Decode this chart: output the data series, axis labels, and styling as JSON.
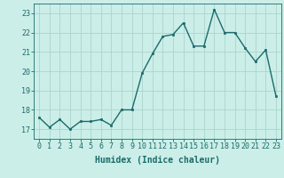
{
  "x": [
    0,
    1,
    2,
    3,
    4,
    5,
    6,
    7,
    8,
    9,
    10,
    11,
    12,
    13,
    14,
    15,
    16,
    17,
    18,
    19,
    20,
    21,
    22,
    23
  ],
  "y": [
    17.6,
    17.1,
    17.5,
    17.0,
    17.4,
    17.4,
    17.5,
    17.2,
    18.0,
    18.0,
    19.9,
    20.9,
    21.8,
    21.9,
    22.5,
    21.3,
    21.3,
    23.2,
    22.0,
    22.0,
    21.2,
    20.5,
    21.1,
    18.7
  ],
  "line_color": "#1a6b6b",
  "marker": "s",
  "markersize": 2.0,
  "linewidth": 1.0,
  "bg_color": "#cceee8",
  "grid_color": "#aad4ce",
  "xlabel": "Humidex (Indice chaleur)",
  "xlabel_fontsize": 7,
  "tick_fontsize": 6,
  "ylim": [
    16.5,
    23.5
  ],
  "xlim": [
    -0.5,
    23.5
  ],
  "yticks": [
    17,
    18,
    19,
    20,
    21,
    22,
    23
  ],
  "xticks": [
    0,
    1,
    2,
    3,
    4,
    5,
    6,
    7,
    8,
    9,
    10,
    11,
    12,
    13,
    14,
    15,
    16,
    17,
    18,
    19,
    20,
    21,
    22,
    23
  ]
}
